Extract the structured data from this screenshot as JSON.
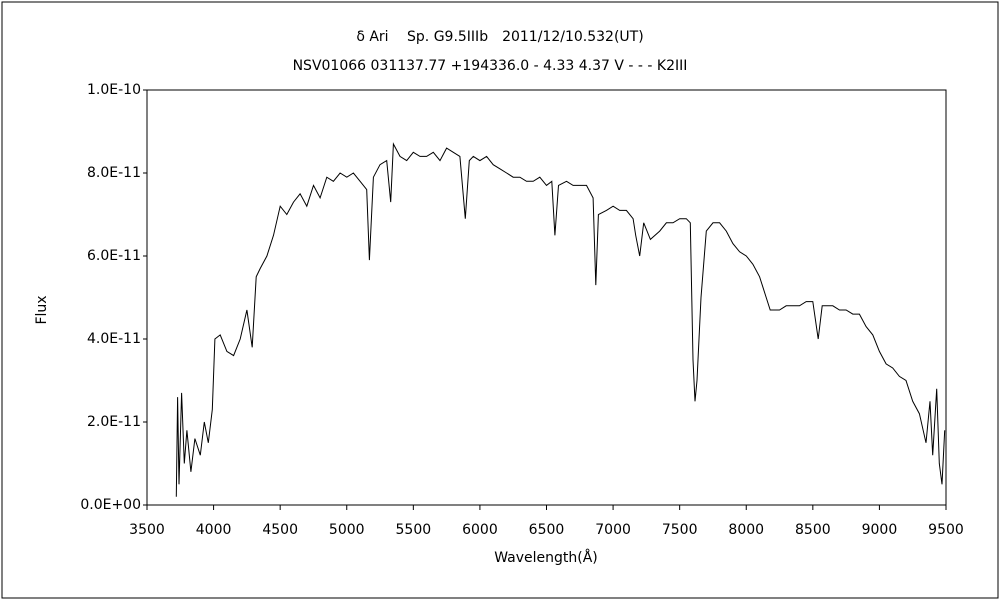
{
  "chart_data": {
    "type": "line",
    "title": "δ Ari　 Sp. G9.5IIIb　2011/12/10.532(UT)",
    "subtitle": "NSV01066 031137.77 +194336.0 - 4.33 4.37 V - - - K2III",
    "x_label": "Wavelength(Å)",
    "y_label": "Flux",
    "xlim": [
      3500,
      9500
    ],
    "xticks": [
      3500,
      4000,
      4500,
      5000,
      5500,
      6000,
      6500,
      7000,
      7500,
      8000,
      8500,
      9000,
      9500
    ],
    "ylim": [
      0,
      1e-10
    ],
    "yticks": [
      {
        "value": 0,
        "label": "0.0E+00"
      },
      {
        "value": 2e-11,
        "label": "2.0E-11"
      },
      {
        "value": 4e-11,
        "label": "4.0E-11"
      },
      {
        "value": 6e-11,
        "label": "6.0E-11"
      },
      {
        "value": 8e-11,
        "label": "8.0E-11"
      },
      {
        "value": 1e-10,
        "label": "1.0E-10"
      }
    ],
    "grid": false,
    "series": [
      {
        "color": "#000000",
        "x": [
          3720,
          3730,
          3740,
          3760,
          3780,
          3800,
          3830,
          3860,
          3900,
          3930,
          3960,
          3990,
          4010,
          4050,
          4100,
          4150,
          4200,
          4250,
          4290,
          4320,
          4350,
          4400,
          4450,
          4500,
          4550,
          4600,
          4650,
          4700,
          4750,
          4800,
          4850,
          4900,
          4950,
          5000,
          5050,
          5100,
          5150,
          5170,
          5200,
          5250,
          5300,
          5330,
          5350,
          5400,
          5450,
          5500,
          5550,
          5600,
          5650,
          5700,
          5750,
          5800,
          5850,
          5890,
          5920,
          5950,
          6000,
          6050,
          6100,
          6150,
          6200,
          6250,
          6300,
          6350,
          6400,
          6450,
          6500,
          6540,
          6563,
          6590,
          6650,
          6700,
          6750,
          6800,
          6850,
          6870,
          6890,
          6950,
          7000,
          7050,
          7100,
          7150,
          7170,
          7200,
          7230,
          7280,
          7350,
          7400,
          7450,
          7500,
          7550,
          7580,
          7600,
          7615,
          7630,
          7660,
          7700,
          7750,
          7800,
          7850,
          7900,
          7950,
          8000,
          8050,
          8100,
          8150,
          8180,
          8250,
          8300,
          8350,
          8400,
          8450,
          8500,
          8540,
          8570,
          8650,
          8700,
          8750,
          8800,
          8850,
          8900,
          8950,
          9000,
          9050,
          9100,
          9150,
          9200,
          9250,
          9300,
          9350,
          9380,
          9400,
          9430,
          9450,
          9470,
          9490
        ],
        "values": [
          2e-12,
          2.6e-11,
          5e-12,
          2.7e-11,
          1e-11,
          1.8e-11,
          8e-12,
          1.6e-11,
          1.2e-11,
          2e-11,
          1.5e-11,
          2.3e-11,
          4e-11,
          4.1e-11,
          3.7e-11,
          3.6e-11,
          4e-11,
          4.7e-11,
          3.8e-11,
          5.5e-11,
          5.7e-11,
          6e-11,
          6.5e-11,
          7.2e-11,
          7e-11,
          7.3e-11,
          7.5e-11,
          7.2e-11,
          7.7e-11,
          7.4e-11,
          7.9e-11,
          7.8e-11,
          8e-11,
          7.9e-11,
          8e-11,
          7.8e-11,
          7.6e-11,
          5.9e-11,
          7.9e-11,
          8.2e-11,
          8.3e-11,
          7.3e-11,
          8.7e-11,
          8.4e-11,
          8.3e-11,
          8.5e-11,
          8.4e-11,
          8.4e-11,
          8.5e-11,
          8.3e-11,
          8.6e-11,
          8.5e-11,
          8.4e-11,
          6.9e-11,
          8.3e-11,
          8.4e-11,
          8.3e-11,
          8.4e-11,
          8.2e-11,
          8.1e-11,
          8e-11,
          7.9e-11,
          7.9e-11,
          7.8e-11,
          7.8e-11,
          7.9e-11,
          7.7e-11,
          7.8e-11,
          6.5e-11,
          7.7e-11,
          7.8e-11,
          7.7e-11,
          7.7e-11,
          7.7e-11,
          7.4e-11,
          5.3e-11,
          7e-11,
          7.1e-11,
          7.2e-11,
          7.1e-11,
          7.1e-11,
          6.9e-11,
          6.5e-11,
          6e-11,
          6.8e-11,
          6.4e-11,
          6.6e-11,
          6.8e-11,
          6.8e-11,
          6.9e-11,
          6.9e-11,
          6.8e-11,
          3.5e-11,
          2.5e-11,
          3e-11,
          5e-11,
          6.6e-11,
          6.8e-11,
          6.8e-11,
          6.6e-11,
          6.3e-11,
          6.1e-11,
          6e-11,
          5.8e-11,
          5.5e-11,
          5e-11,
          4.7e-11,
          4.7e-11,
          4.8e-11,
          4.8e-11,
          4.8e-11,
          4.9e-11,
          4.9e-11,
          4e-11,
          4.8e-11,
          4.8e-11,
          4.7e-11,
          4.7e-11,
          4.6e-11,
          4.6e-11,
          4.3e-11,
          4.1e-11,
          3.7e-11,
          3.4e-11,
          3.3e-11,
          3.1e-11,
          3e-11,
          2.5e-11,
          2.2e-11,
          1.5e-11,
          2.5e-11,
          1.2e-11,
          2.8e-11,
          1e-11,
          5e-12,
          1.8e-11
        ]
      }
    ]
  }
}
